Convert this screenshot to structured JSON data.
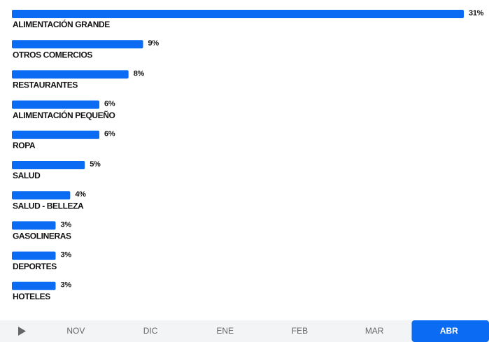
{
  "chart_data": {
    "type": "bar",
    "orientation": "horizontal",
    "color": "#0b6cf3",
    "categories": [
      "ALIMENTACIÓN GRANDE",
      "OTROS COMERCIOS",
      "RESTAURANTES",
      "ALIMENTACIÓN PEQUEÑO",
      "ROPA",
      "SALUD",
      "SALUD - BELLEZA",
      "GASOLINERAS",
      "DEPORTES",
      "HOTELES"
    ],
    "values": [
      31,
      9,
      8,
      6,
      6,
      5,
      4,
      3,
      3,
      3
    ],
    "value_labels": [
      "31%",
      "9%",
      "8%",
      "6%",
      "6%",
      "5%",
      "4%",
      "3%",
      "3%",
      "3%"
    ],
    "xlim": [
      0,
      31
    ]
  },
  "timeline": {
    "months": [
      "NOV",
      "DIC",
      "ENE",
      "FEB",
      "MAR",
      "ABR"
    ],
    "selected": 5,
    "selected_color": "#0b6cf3"
  }
}
